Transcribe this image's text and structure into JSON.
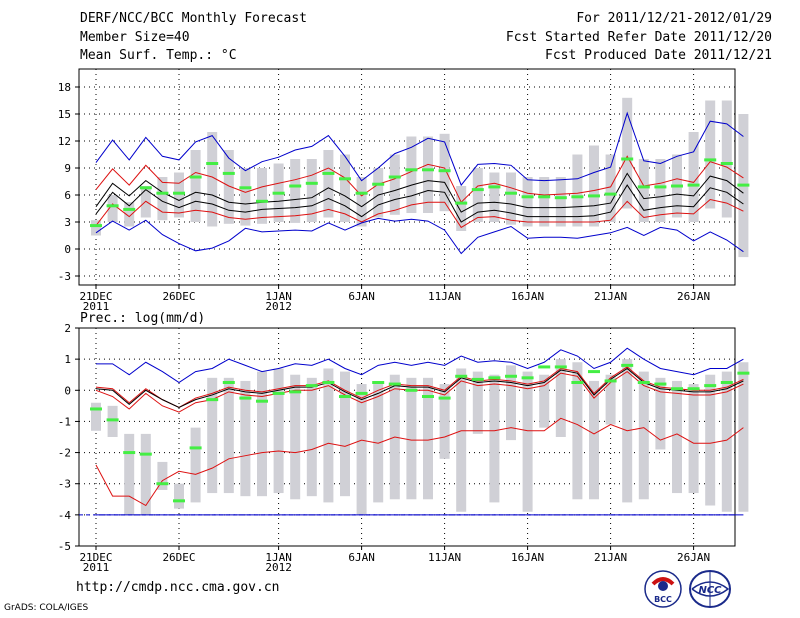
{
  "header": {
    "title": "DERF/NCC/BCC Monthly Forecast",
    "member_size": "Member Size=40",
    "variable": "Mean Surf. Temp.: °C",
    "period": "For 2011/12/21-2012/01/29",
    "started": "Fcst Started Refer Date 2011/12/20",
    "produced": "Fcst Produced Date 2011/12/21"
  },
  "footer": {
    "url": "http://cmdp.ncc.cma.gov.cn",
    "credit": "GrADS: COLA/IGES",
    "logo_left_text": "BCC",
    "logo_right_text": "NCC"
  },
  "colors": {
    "box": "#d0d0d6",
    "ensemble_mean": "#44ee44",
    "max_min": "#0000cc",
    "percentile": "#dd1111",
    "median": "#000000"
  },
  "chart_data": [
    {
      "type": "box-line",
      "title": "Mean Surf. Temp.: °C",
      "ylabel": "°C",
      "ylim": [
        -4,
        20
      ],
      "yticks": [
        -3,
        0,
        3,
        6,
        9,
        12,
        15,
        18
      ],
      "x_tick_labels": [
        {
          "day": 0,
          "label": "21DEC",
          "sub": "2011"
        },
        {
          "day": 5,
          "label": "26DEC",
          "sub": ""
        },
        {
          "day": 11,
          "label": "1JAN",
          "sub": "2012"
        },
        {
          "day": 16,
          "label": "6JAN",
          "sub": ""
        },
        {
          "day": 21,
          "label": "11JAN",
          "sub": ""
        },
        {
          "day": 26,
          "label": "16JAN",
          "sub": ""
        },
        {
          "day": 31,
          "label": "21JAN",
          "sub": ""
        },
        {
          "day": 36,
          "label": "26JAN",
          "sub": ""
        }
      ],
      "x": [
        0,
        1,
        2,
        3,
        4,
        5,
        6,
        7,
        8,
        9,
        10,
        11,
        12,
        13,
        14,
        15,
        16,
        17,
        18,
        19,
        20,
        21,
        22,
        23,
        24,
        25,
        26,
        27,
        28,
        29,
        30,
        31,
        32,
        33,
        34,
        35,
        36,
        37,
        38,
        39
      ],
      "max": [
        9.6,
        12.1,
        9.9,
        12.4,
        10.3,
        9.9,
        11.9,
        12.6,
        10.1,
        8.7,
        9.7,
        10.2,
        11.0,
        11.4,
        12.6,
        10.3,
        7.6,
        9.0,
        10.6,
        11.3,
        12.3,
        11.9,
        7.1,
        9.4,
        9.5,
        9.3,
        7.7,
        7.6,
        7.7,
        7.8,
        8.5,
        9.1,
        15.1,
        9.8,
        9.5,
        10.3,
        10.8,
        14.2,
        13.9,
        12.5
      ],
      "p90": [
        6.6,
        8.9,
        7.1,
        9.3,
        7.4,
        7.3,
        8.5,
        8.0,
        7.0,
        6.3,
        6.9,
        7.3,
        7.7,
        8.2,
        9.0,
        7.9,
        5.9,
        7.2,
        7.8,
        8.6,
        9.4,
        9.0,
        5.2,
        7.0,
        7.3,
        6.8,
        6.2,
        6.0,
        6.1,
        6.2,
        6.5,
        6.9,
        10.3,
        7.0,
        7.3,
        7.8,
        7.4,
        9.7,
        9.1,
        7.9
      ],
      "median": [
        4.7,
        7.3,
        5.9,
        7.6,
        6.3,
        5.4,
        6.3,
        6.0,
        5.2,
        5.0,
        5.2,
        5.3,
        5.5,
        5.7,
        6.8,
        5.9,
        4.7,
        6.0,
        6.5,
        7.1,
        7.6,
        7.4,
        4.1,
        5.1,
        5.2,
        5.0,
        4.6,
        4.6,
        4.6,
        4.7,
        4.8,
        5.1,
        8.4,
        5.6,
        5.8,
        6.1,
        5.9,
        8.1,
        7.6,
        6.2
      ],
      "p10": [
        3.9,
        6.3,
        4.8,
        6.6,
        5.3,
        4.6,
        5.3,
        5.0,
        4.3,
        4.1,
        4.4,
        4.5,
        4.6,
        4.8,
        5.6,
        4.8,
        3.6,
        4.9,
        5.5,
        5.9,
        6.5,
        6.3,
        3.0,
        4.1,
        4.3,
        4.0,
        3.6,
        3.6,
        3.6,
        3.6,
        3.7,
        4.1,
        7.1,
        4.3,
        4.6,
        4.8,
        4.7,
        6.8,
        6.3,
        5.0
      ],
      "p25": [
        2.6,
        5.0,
        3.6,
        5.3,
        4.1,
        4.0,
        4.3,
        4.1,
        3.5,
        3.3,
        3.5,
        3.6,
        3.7,
        3.9,
        4.4,
        3.9,
        3.0,
        3.9,
        4.3,
        4.9,
        5.2,
        5.2,
        2.4,
        3.5,
        3.6,
        3.2,
        3.0,
        3.0,
        3.0,
        3.0,
        3.0,
        3.2,
        5.3,
        3.5,
        3.8,
        4.0,
        3.9,
        5.5,
        5.1,
        4.2
      ],
      "min": [
        1.8,
        3.1,
        2.1,
        3.2,
        1.6,
        0.6,
        -0.2,
        0.1,
        0.9,
        2.3,
        1.9,
        2.0,
        2.1,
        2.0,
        2.9,
        2.1,
        2.9,
        3.4,
        3.1,
        3.3,
        3.1,
        2.1,
        -0.5,
        1.3,
        1.9,
        2.5,
        1.2,
        1.3,
        1.3,
        1.2,
        1.5,
        1.8,
        2.4,
        1.5,
        2.4,
        2.1,
        0.9,
        1.9,
        1.0,
        -0.3
      ],
      "box_low": [
        1.5,
        3.0,
        2.5,
        3.5,
        3.2,
        3.5,
        3.0,
        2.5,
        2.8,
        2.6,
        2.8,
        3.0,
        2.9,
        3.0,
        3.5,
        3.0,
        2.5,
        3.5,
        3.8,
        4.0,
        4.0,
        4.2,
        2.0,
        3.0,
        3.0,
        2.7,
        2.5,
        2.5,
        2.5,
        2.5,
        2.5,
        3.0,
        4.5,
        3.0,
        3.0,
        3.5,
        3.0,
        4.5,
        3.5,
        -0.9
      ],
      "box_high": [
        3.2,
        6.0,
        5.2,
        7.0,
        8.0,
        8.5,
        11.0,
        13.0,
        11.0,
        9.0,
        9.0,
        9.5,
        10.0,
        10.0,
        11.0,
        10.5,
        8.0,
        9.0,
        10.5,
        12.5,
        12.5,
        12.8,
        7.0,
        9.0,
        8.5,
        8.5,
        8.0,
        8.0,
        8.0,
        10.5,
        11.5,
        10.5,
        16.8,
        10.0,
        10.0,
        10.5,
        13.0,
        16.5,
        16.5,
        15.0
      ],
      "ensemble_mean": [
        2.6,
        4.8,
        4.4,
        6.8,
        6.2,
        6.2,
        8.0,
        9.5,
        8.4,
        6.8,
        5.3,
        6.2,
        7.0,
        7.3,
        8.4,
        7.8,
        6.2,
        7.2,
        8.0,
        8.8,
        8.8,
        8.7,
        5.1,
        6.6,
        6.9,
        6.2,
        5.8,
        5.8,
        5.7,
        5.8,
        5.9,
        6.1,
        10.0,
        6.9,
        6.9,
        7.0,
        7.1,
        9.9,
        9.5,
        7.1
      ]
    },
    {
      "type": "box-line",
      "title": "Prec.: log(mm/d)",
      "ylabel": "log(mm/d)",
      "ylim": [
        -5,
        2
      ],
      "yticks": [
        -5,
        -4,
        -3,
        -2,
        -1,
        0,
        1,
        2
      ],
      "x_tick_labels": [
        {
          "day": 0,
          "label": "21DEC",
          "sub": "2011"
        },
        {
          "day": 5,
          "label": "26DEC",
          "sub": ""
        },
        {
          "day": 11,
          "label": "1JAN",
          "sub": "2012"
        },
        {
          "day": 16,
          "label": "6JAN",
          "sub": ""
        },
        {
          "day": 21,
          "label": "11JAN",
          "sub": ""
        },
        {
          "day": 26,
          "label": "16JAN",
          "sub": ""
        },
        {
          "day": 31,
          "label": "21JAN",
          "sub": ""
        },
        {
          "day": 36,
          "label": "26JAN",
          "sub": ""
        }
      ],
      "x": [
        0,
        1,
        2,
        3,
        4,
        5,
        6,
        7,
        8,
        9,
        10,
        11,
        12,
        13,
        14,
        15,
        16,
        17,
        18,
        19,
        20,
        21,
        22,
        23,
        24,
        25,
        26,
        27,
        28,
        29,
        30,
        31,
        32,
        33,
        34,
        35,
        36,
        37,
        38,
        39
      ],
      "max": [
        0.85,
        0.85,
        0.5,
        0.9,
        0.6,
        0.25,
        0.6,
        0.7,
        1.0,
        0.8,
        0.6,
        0.7,
        0.85,
        0.8,
        1.0,
        0.7,
        0.5,
        0.8,
        0.9,
        0.8,
        0.9,
        0.8,
        1.1,
        0.9,
        0.95,
        0.9,
        0.7,
        0.9,
        1.3,
        1.1,
        0.7,
        0.9,
        1.35,
        1.0,
        0.7,
        0.6,
        0.5,
        0.7,
        0.7,
        1.0
      ],
      "p90": [
        0.1,
        0.05,
        -0.4,
        0.05,
        -0.3,
        -0.55,
        -0.25,
        -0.1,
        0.1,
        0.0,
        -0.05,
        0.05,
        0.15,
        0.15,
        0.3,
        0.0,
        -0.25,
        0.0,
        0.2,
        0.15,
        0.15,
        0.0,
        0.45,
        0.3,
        0.35,
        0.3,
        0.2,
        0.3,
        0.7,
        0.6,
        -0.1,
        0.4,
        0.75,
        0.3,
        0.1,
        0.05,
        0.0,
        0.0,
        0.1,
        0.35
      ],
      "median": [
        0.05,
        0.0,
        -0.45,
        0.0,
        -0.3,
        -0.55,
        -0.3,
        -0.15,
        0.05,
        -0.05,
        -0.1,
        0.0,
        0.1,
        0.1,
        0.25,
        -0.05,
        -0.3,
        -0.1,
        0.15,
        0.1,
        0.1,
        -0.05,
        0.4,
        0.25,
        0.3,
        0.25,
        0.15,
        0.25,
        0.65,
        0.55,
        -0.15,
        0.35,
        0.7,
        0.25,
        0.05,
        0.0,
        -0.05,
        -0.05,
        0.05,
        0.3
      ],
      "p10": [
        -2.4,
        -3.4,
        -3.4,
        -3.7,
        -2.9,
        -2.6,
        -2.7,
        -2.5,
        -2.2,
        -2.1,
        -2.0,
        -1.95,
        -2.0,
        -1.9,
        -1.7,
        -1.8,
        -1.6,
        -1.7,
        -1.5,
        -1.6,
        -1.6,
        -1.5,
        -1.3,
        -1.3,
        -1.3,
        -1.2,
        -1.3,
        -1.3,
        -0.9,
        -1.1,
        -1.4,
        -1.1,
        -1.3,
        -1.2,
        -1.6,
        -1.4,
        -1.7,
        -1.7,
        -1.6,
        -1.2
      ],
      "p25": [
        0.0,
        -0.2,
        -0.6,
        -0.1,
        -0.5,
        -0.7,
        -0.4,
        -0.3,
        -0.05,
        -0.15,
        -0.2,
        -0.1,
        0.0,
        0.0,
        0.15,
        -0.15,
        -0.4,
        -0.2,
        0.05,
        0.0,
        0.0,
        -0.15,
        0.3,
        0.15,
        0.2,
        0.15,
        0.05,
        0.15,
        0.55,
        0.45,
        -0.25,
        0.25,
        0.6,
        0.15,
        -0.05,
        -0.1,
        -0.15,
        -0.15,
        -0.05,
        0.2
      ],
      "min": [
        -4.0,
        -4.0,
        -4.0,
        -4.0,
        -4.0,
        -4.0,
        -4.0,
        -4.0,
        -4.0,
        -4.0,
        -4.0,
        -4.0,
        -4.0,
        -4.0,
        -4.0,
        -4.0,
        -4.0,
        -4.0,
        -4.0,
        -4.0,
        -4.0,
        -4.0,
        -4.0,
        -4.0,
        -4.0,
        -4.0,
        -4.0,
        -4.0,
        -4.0,
        -4.0,
        -4.0,
        -4.0,
        -4.0,
        -4.0,
        -4.0,
        -4.0,
        -4.0,
        -4.0,
        -4.0,
        -4.0
      ],
      "box_low": [
        -1.3,
        -1.5,
        -4.0,
        -4.0,
        -3.2,
        -3.8,
        -3.6,
        -3.3,
        -3.3,
        -3.4,
        -3.4,
        -3.3,
        -3.5,
        -3.4,
        -3.6,
        -3.4,
        -4.0,
        -3.6,
        -3.5,
        -3.5,
        -3.5,
        -2.2,
        -3.9,
        -1.4,
        -3.6,
        -1.6,
        -3.9,
        -1.2,
        -1.5,
        -3.5,
        -3.5,
        -1.1,
        -3.6,
        -3.5,
        -1.9,
        -3.3,
        -3.3,
        -3.7,
        -3.9,
        -3.9
      ],
      "box_high": [
        -0.4,
        -0.5,
        -1.4,
        -1.4,
        -2.3,
        -3.0,
        -1.2,
        0.4,
        0.4,
        0.3,
        0.6,
        0.7,
        0.5,
        0.4,
        0.7,
        0.6,
        0.2,
        0.2,
        0.5,
        0.4,
        0.4,
        0.2,
        0.7,
        0.6,
        0.5,
        0.8,
        0.6,
        0.5,
        1.0,
        0.9,
        0.3,
        0.5,
        1.0,
        0.6,
        0.4,
        0.3,
        0.2,
        0.5,
        0.6,
        0.9
      ],
      "ensemble_mean": [
        -0.6,
        -0.95,
        -2.0,
        -2.05,
        -3.0,
        -3.55,
        -1.85,
        -0.3,
        0.25,
        -0.25,
        -0.35,
        -0.1,
        -0.05,
        0.15,
        0.25,
        -0.2,
        -0.1,
        0.25,
        0.2,
        0.0,
        -0.2,
        -0.25,
        0.45,
        0.35,
        0.4,
        0.45,
        0.4,
        0.75,
        0.75,
        0.25,
        0.6,
        0.3,
        0.8,
        0.25,
        0.2,
        0.05,
        0.05,
        0.15,
        0.25,
        0.55
      ]
    }
  ]
}
